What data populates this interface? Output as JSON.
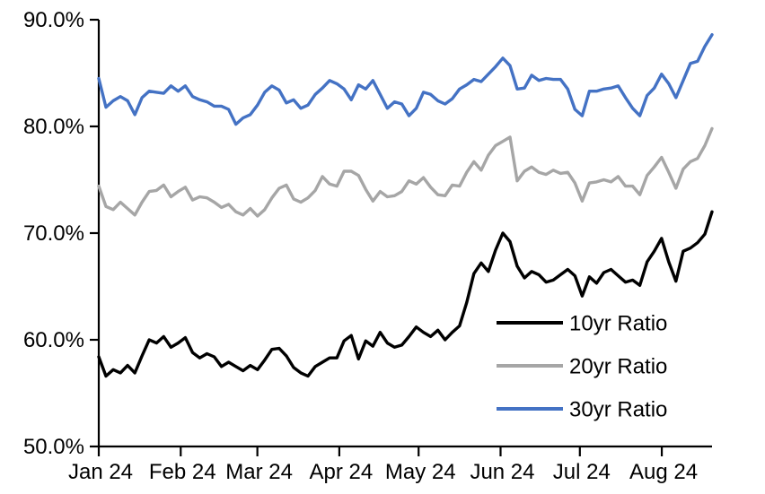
{
  "chart_data": {
    "type": "line",
    "title": "",
    "background": "#ffffff",
    "axis_color": "#000000",
    "grid": "off",
    "y_axis": {
      "min": 50,
      "max": 90,
      "unit": "%",
      "tick_values": [
        50,
        60,
        70,
        80,
        90
      ],
      "tick_labels": [
        "50.0%",
        "60.0%",
        "70.0%",
        "80.0%",
        "90.0%"
      ]
    },
    "x_axis": {
      "tick_labels": [
        "Jan 24",
        "Feb 24",
        "Mar 24",
        "Apr 24",
        "May 24",
        "Jun 24",
        "Jul 24",
        "Aug 24"
      ],
      "tick_day_offsets": [
        0,
        31,
        60,
        91,
        121,
        152,
        182,
        213
      ],
      "total_days": 232
    },
    "legend": {
      "position": "inside lower right",
      "entries": [
        "10yr Ratio",
        "20yr Ratio",
        "30yr Ratio"
      ]
    },
    "series": [
      {
        "name": "10yr Ratio",
        "color": "#000000",
        "values": [
          58.4,
          56.6,
          57.2,
          56.9,
          57.6,
          56.9,
          58.5,
          60.0,
          59.7,
          60.3,
          59.3,
          59.7,
          60.2,
          58.8,
          58.3,
          58.7,
          58.4,
          57.5,
          57.9,
          57.5,
          57.1,
          57.6,
          57.2,
          58.1,
          59.1,
          59.2,
          58.5,
          57.4,
          56.9,
          56.6,
          57.5,
          57.9,
          58.3,
          58.3,
          59.9,
          60.4,
          58.2,
          59.9,
          59.4,
          60.7,
          59.7,
          59.3,
          59.5,
          60.3,
          61.2,
          60.7,
          60.3,
          60.9,
          60.0,
          60.7,
          61.3,
          63.5,
          66.2,
          67.2,
          66.4,
          68.4,
          70.0,
          69.2,
          66.9,
          65.8,
          66.4,
          66.1,
          65.4,
          65.6,
          66.1,
          66.6,
          66.0,
          64.1,
          65.9,
          65.3,
          66.3,
          66.6,
          66.0,
          65.4,
          65.6,
          65.1,
          67.3,
          68.3,
          69.5,
          67.3,
          65.5,
          68.3,
          68.6,
          69.1,
          69.9,
          72.0
        ]
      },
      {
        "name": "20yr Ratio",
        "color": "#A6A6A6",
        "values": [
          74.4,
          72.5,
          72.2,
          72.9,
          72.3,
          71.7,
          72.9,
          73.9,
          74.0,
          74.5,
          73.4,
          73.9,
          74.3,
          73.1,
          73.4,
          73.3,
          72.9,
          72.4,
          72.7,
          72.0,
          71.7,
          72.3,
          71.6,
          72.2,
          73.3,
          74.2,
          74.5,
          73.2,
          72.9,
          73.3,
          74.0,
          75.3,
          74.6,
          74.4,
          75.8,
          75.8,
          75.4,
          74.1,
          73.0,
          73.9,
          73.4,
          73.5,
          73.9,
          74.9,
          74.6,
          75.2,
          74.3,
          73.6,
          73.5,
          74.5,
          74.4,
          75.7,
          76.7,
          75.9,
          77.3,
          78.2,
          78.6,
          79.0,
          74.9,
          75.8,
          76.2,
          75.7,
          75.5,
          75.9,
          75.6,
          75.7,
          74.7,
          73.0,
          74.7,
          74.8,
          75.0,
          74.8,
          75.3,
          74.4,
          74.4,
          73.6,
          75.4,
          76.2,
          77.1,
          75.7,
          74.2,
          76.0,
          76.7,
          77.0,
          78.2,
          79.8
        ]
      },
      {
        "name": "30yr Ratio",
        "color": "#4472C4",
        "values": [
          84.5,
          81.8,
          82.4,
          82.8,
          82.4,
          81.1,
          82.7,
          83.3,
          83.2,
          83.1,
          83.8,
          83.3,
          83.8,
          82.8,
          82.5,
          82.3,
          81.9,
          81.9,
          81.6,
          80.2,
          80.8,
          81.1,
          82.0,
          83.2,
          83.8,
          83.4,
          82.2,
          82.5,
          81.7,
          82.0,
          83.0,
          83.6,
          84.3,
          84.0,
          83.5,
          82.5,
          83.9,
          83.5,
          84.3,
          83.0,
          81.7,
          82.3,
          82.1,
          81.0,
          81.7,
          83.2,
          83.0,
          82.4,
          82.1,
          82.6,
          83.5,
          83.9,
          84.4,
          84.2,
          84.9,
          85.6,
          86.4,
          85.7,
          83.5,
          83.6,
          84.8,
          84.3,
          84.5,
          84.4,
          84.4,
          83.5,
          81.6,
          81.0,
          83.3,
          83.3,
          83.5,
          83.6,
          83.8,
          82.7,
          81.7,
          81.0,
          82.9,
          83.6,
          84.9,
          84.0,
          82.7,
          84.3,
          85.9,
          86.1,
          87.5,
          88.6
        ]
      }
    ]
  }
}
